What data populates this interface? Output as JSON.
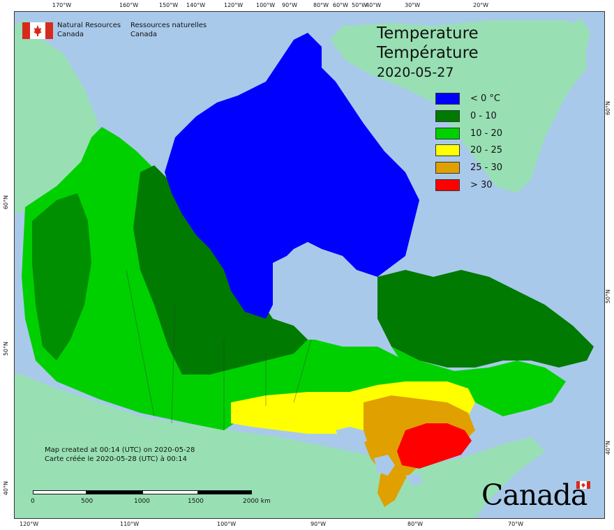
{
  "title": {
    "en": "Temperature",
    "fr": "Température",
    "date": "2020-05-27"
  },
  "agency": {
    "en_line1": "Natural Resources",
    "en_line2": "Canada",
    "fr_line1": "Ressources naturelles",
    "fr_line2": "Canada"
  },
  "legend": {
    "items": [
      {
        "label": "< 0 °C",
        "color": "#0000ff"
      },
      {
        "label": "0 - 10",
        "color": "#007a00"
      },
      {
        "label": "10 - 20",
        "color": "#00d000"
      },
      {
        "label": "20 - 25",
        "color": "#ffff00"
      },
      {
        "label": "25 - 30",
        "color": "#e0a000"
      },
      {
        "label": "> 30",
        "color": "#ff0000"
      }
    ]
  },
  "credits": {
    "en": "Map created at 00:14 (UTC) on 2020-05-28",
    "fr": "Carte créée le 2020-05-28 (UTC) à 00:14"
  },
  "scalebar": {
    "ticks": [
      "0",
      "500",
      "1000",
      "1500",
      "2000  km"
    ]
  },
  "graticule": {
    "top": [
      "170°W",
      "160°W",
      "150°W",
      "140°W",
      "120°W",
      "100°W",
      "90°W",
      "80°W",
      "60°W",
      "50°W",
      "40°W",
      "30°W",
      "20°W"
    ],
    "bottom": [
      "120°W",
      "110°W",
      "100°W",
      "90°W",
      "80°W",
      "70°W"
    ],
    "left": [
      "60°N",
      "50°N",
      "40°N"
    ],
    "right": [
      "60°N",
      "50°N",
      "40°N"
    ]
  },
  "wordmark": "Canada",
  "colors": {
    "ocean": "#a9c9ea",
    "foreign_land": "#98e0b4",
    "flag_red": "#d52b1e"
  }
}
